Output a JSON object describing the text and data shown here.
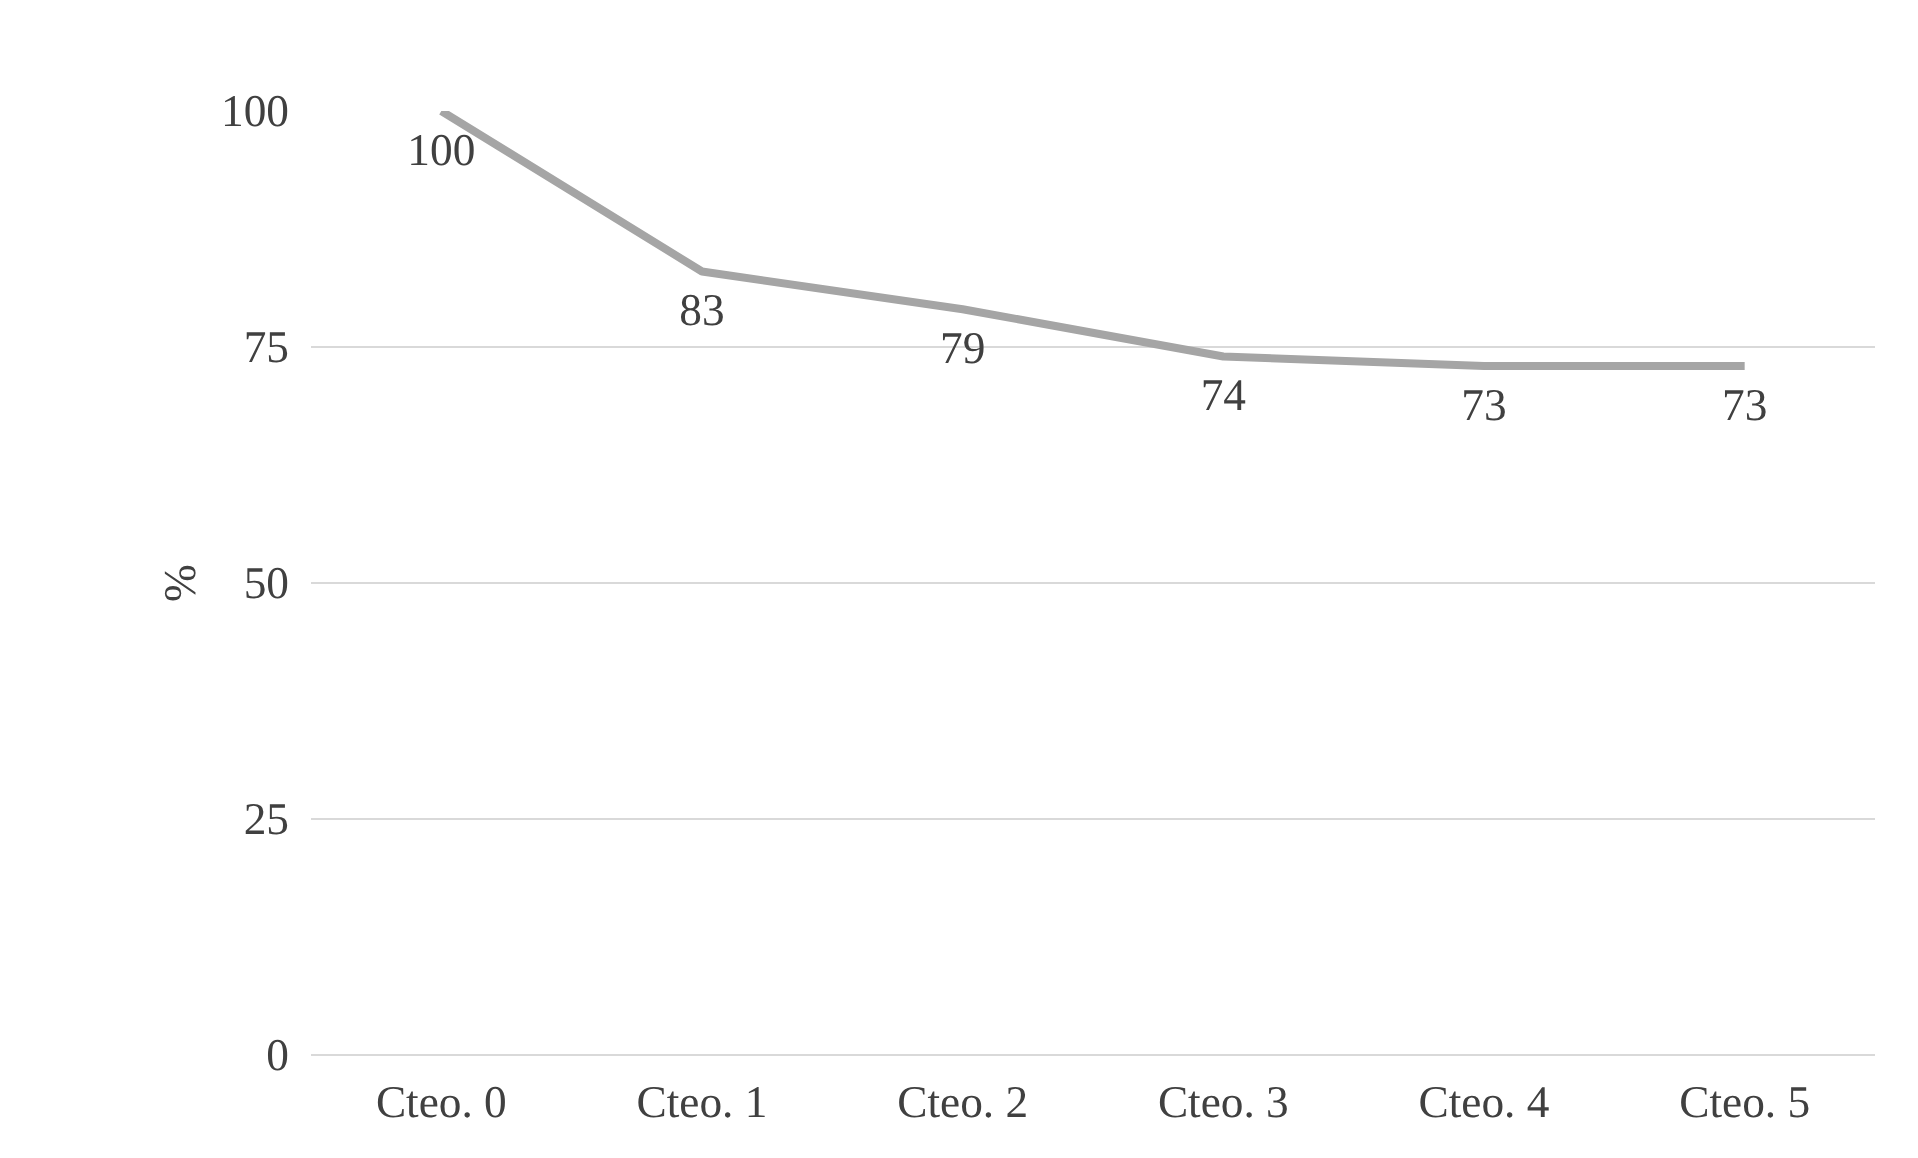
{
  "chart_data": {
    "type": "line",
    "ylabel": "%",
    "categories": [
      "Cteo. 0",
      "Cteo. 1",
      "Cteo. 2",
      "Cteo. 3",
      "Cteo. 4",
      "Cteo. 5"
    ],
    "series": [
      {
        "color": "#a5a5a5",
        "values": [
          100,
          83,
          79,
          74,
          73,
          73
        ]
      }
    ],
    "ylim": [
      0,
      100
    ],
    "yticks": [
      0,
      25,
      50,
      75,
      100
    ],
    "grid": "y",
    "data_labels": true,
    "marker": "none",
    "line_style": "solid"
  }
}
